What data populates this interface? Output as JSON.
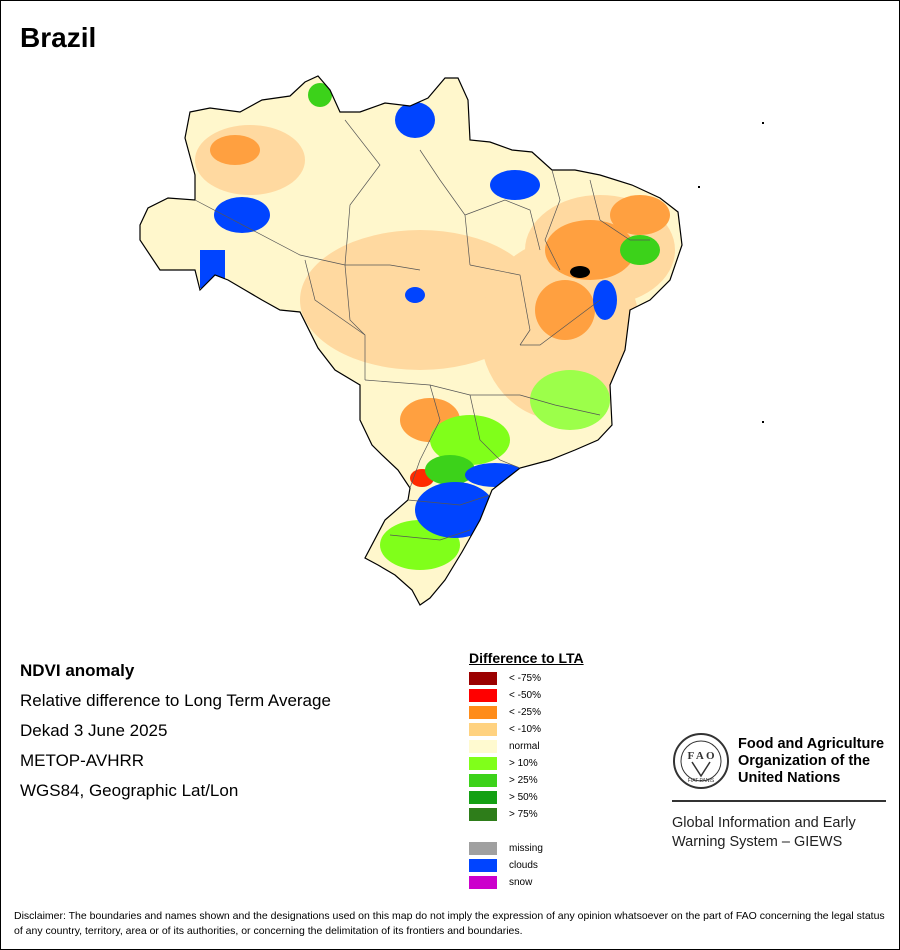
{
  "map": {
    "title": "Brazil"
  },
  "info": {
    "line1": "NDVI anomaly",
    "line2": "Relative difference to Long Term Average",
    "line3": "Dekad 3 June 2025",
    "line4": "METOP-AVHRR",
    "line5": "WGS84, Geographic Lat/Lon"
  },
  "legend": {
    "title": "Difference to LTA",
    "classes": [
      {
        "label": "< -75%",
        "color": "#9b0000"
      },
      {
        "label": "< -50%",
        "color": "#ff0000"
      },
      {
        "label": "< -25%",
        "color": "#ff8c1a"
      },
      {
        "label": "< -10%",
        "color": "#ffd280"
      },
      {
        "label": "normal",
        "color": "#fffad0"
      },
      {
        "label": "> 10%",
        "color": "#80ff1a"
      },
      {
        "label": "> 25%",
        "color": "#3cd21a"
      },
      {
        "label": "> 50%",
        "color": "#14a014"
      },
      {
        "label": "> 75%",
        "color": "#2e7d1a"
      }
    ],
    "extra": [
      {
        "label": "missing",
        "color": "#a0a0a0"
      },
      {
        "label": "clouds",
        "color": "#0044ff"
      },
      {
        "label": "snow",
        "color": "#cc00cc"
      }
    ]
  },
  "fao": {
    "name_line1": "Food and Agriculture",
    "name_line2": "Organization of the",
    "name_line3": "United Nations",
    "logo_text": "FIAT PANIS",
    "system_line1": "Global Information and Early",
    "system_line2": "Warning System – GIEWS"
  },
  "disclaimer": "Disclaimer: The boundaries and names shown and the designations used on this map do not imply the expression of any opinion whatsoever on the part of FAO concerning the legal status of any country, territory, area or of its authorities, or concerning the delimitation of its frontiers and boundaries."
}
